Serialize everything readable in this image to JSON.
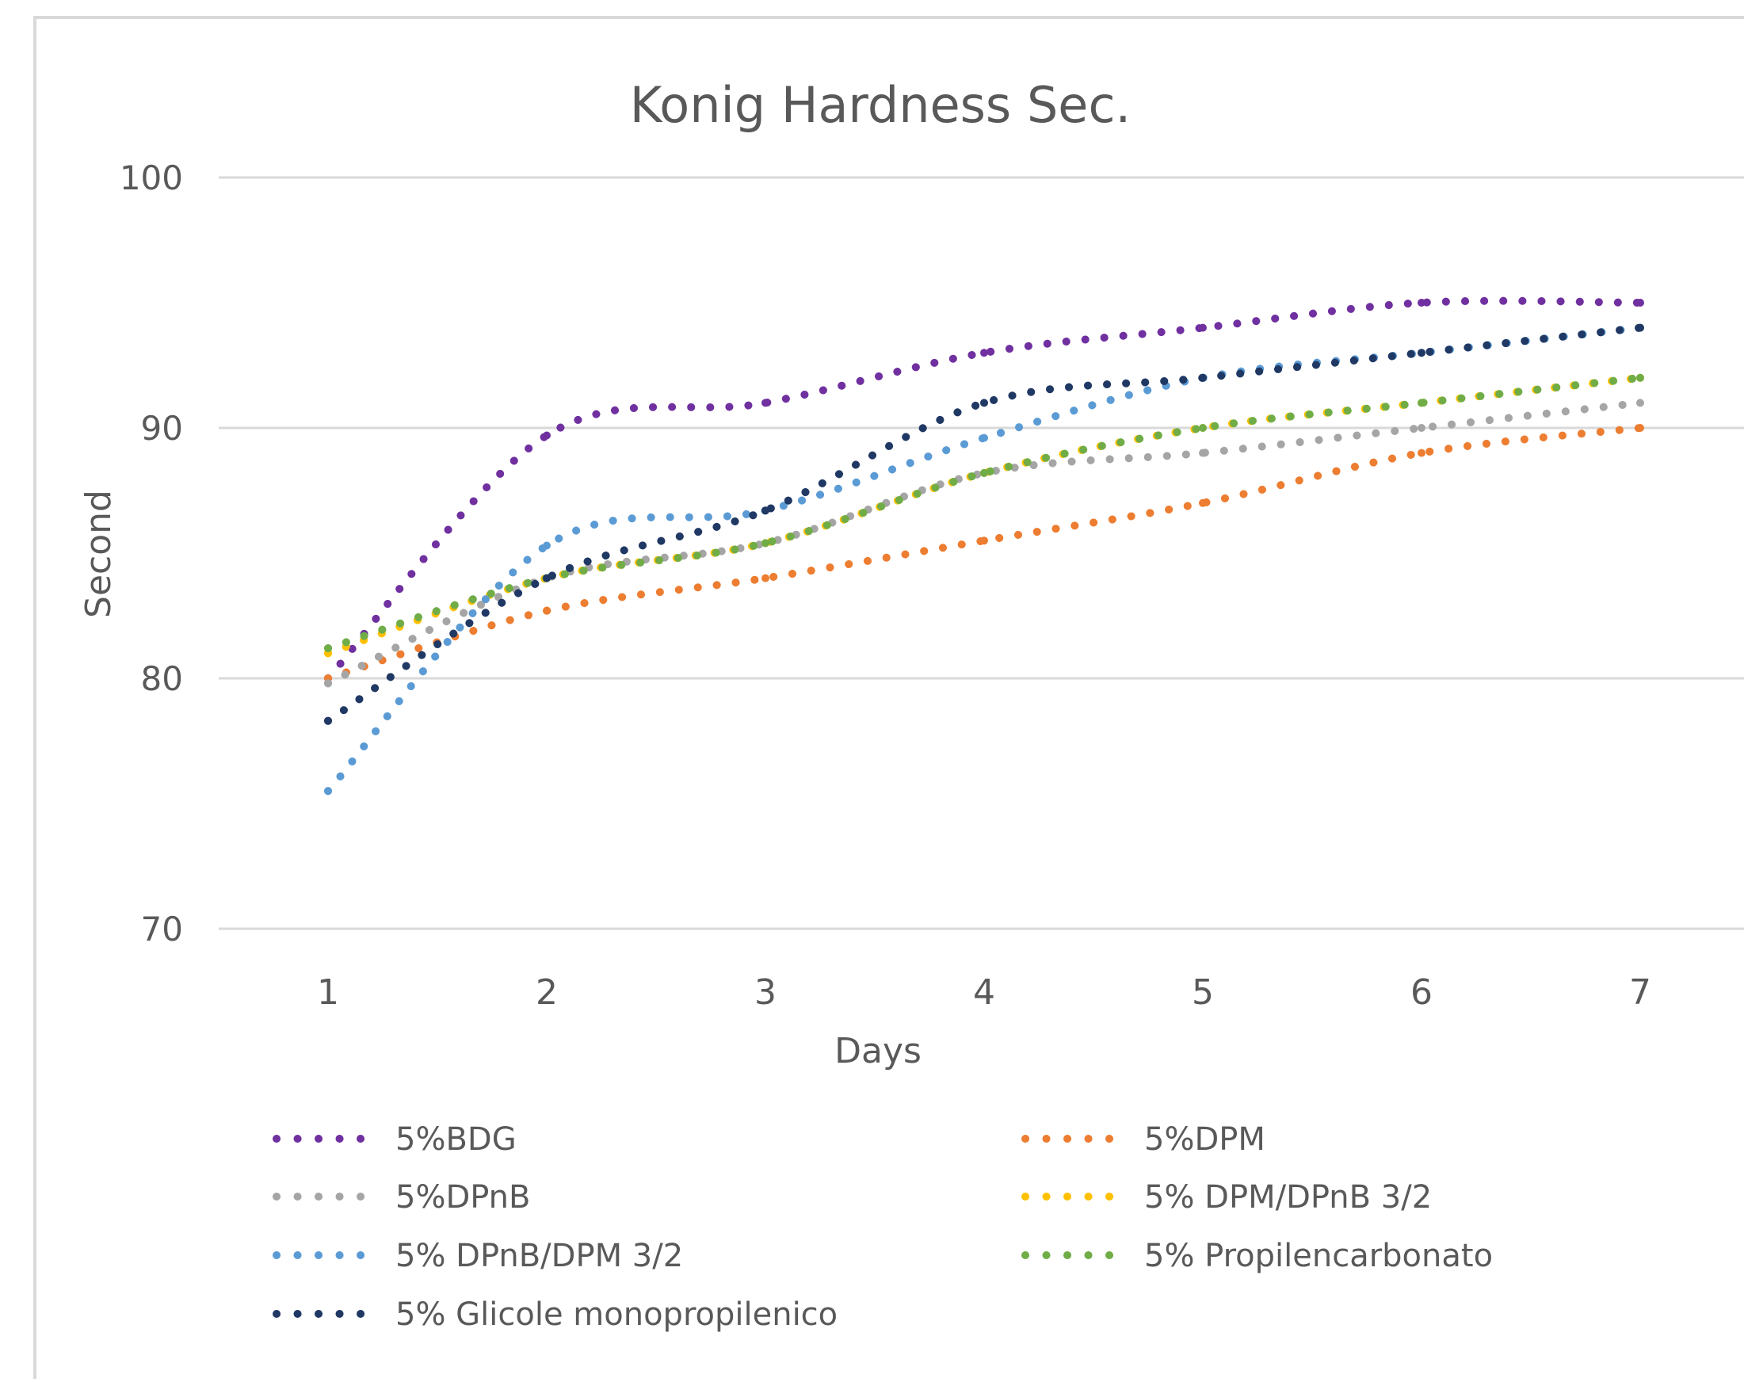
{
  "chart_data": {
    "type": "line",
    "title": "Konig  Hardness Sec.",
    "xlabel": "Days",
    "ylabel": "Second",
    "categories": [
      "1",
      "2",
      "3",
      "4",
      "5",
      "6",
      "7"
    ],
    "ylim": [
      70,
      100
    ],
    "yticks": [
      "70",
      "80",
      "90",
      "100"
    ],
    "grid": true,
    "legend_position": "bottom",
    "line_style": "dotted",
    "series": [
      {
        "name": "5%BDG",
        "color": "#7030a0",
        "values": [
          80,
          89.7,
          91,
          93,
          94,
          95,
          95
        ]
      },
      {
        "name": "5%DPM",
        "color": "#ed7d31",
        "values": [
          80,
          82.7,
          84,
          85.5,
          87,
          89,
          90
        ]
      },
      {
        "name": "5%DPnB",
        "color": "#a5a5a5",
        "values": [
          79.8,
          84,
          85.4,
          88.2,
          89,
          90,
          91
        ]
      },
      {
        "name": "5% DPM/DPnB   3/2",
        "color": "#ffc000",
        "values": [
          81,
          84,
          85.4,
          88.2,
          90,
          91,
          92
        ]
      },
      {
        "name": "5% DPnB/DPM  3/2",
        "color": "#5b9bd5",
        "values": [
          75.5,
          85.3,
          86.7,
          89.6,
          92,
          93,
          94
        ]
      },
      {
        "name": "5% Propilencarbonato",
        "color": "#70ad47",
        "values": [
          81.2,
          84,
          85.4,
          88.2,
          90,
          91,
          92
        ]
      },
      {
        "name": "5% Glicole monopropilenico",
        "color": "#203864",
        "values": [
          78.3,
          84,
          86.7,
          91,
          92,
          93,
          94
        ]
      }
    ]
  }
}
